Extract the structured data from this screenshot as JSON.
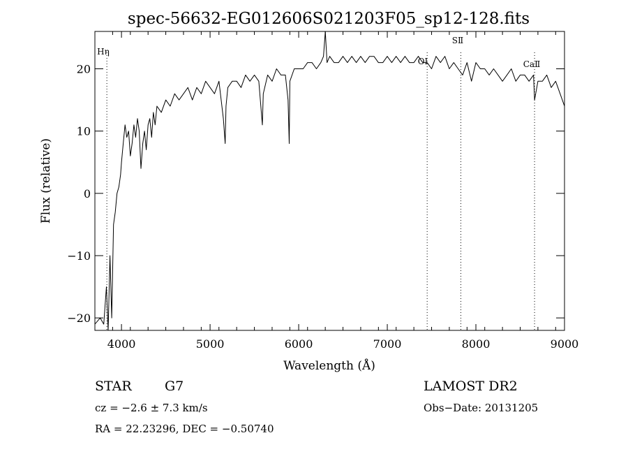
{
  "chart_data": {
    "type": "line",
    "title": "spec-56632-EG012606S021203F05_sp12-128.fits",
    "xlabel": "Wavelength (Å)",
    "ylabel": "Flux (relative)",
    "xlim": [
      3700,
      9000
    ],
    "ylim": [
      -22,
      26
    ],
    "xticks": [
      {
        "value": 4000,
        "label": "4000"
      },
      {
        "value": 5000,
        "label": "5000"
      },
      {
        "value": 6000,
        "label": "6000"
      },
      {
        "value": 7000,
        "label": "7000"
      },
      {
        "value": 8000,
        "label": "8000"
      },
      {
        "value": 9000,
        "label": "9000"
      }
    ],
    "yticks": [
      {
        "value": -20,
        "label": "−20"
      },
      {
        "value": -10,
        "label": "−10"
      },
      {
        "value": 0,
        "label": "0"
      },
      {
        "value": 10,
        "label": "10"
      },
      {
        "value": 20,
        "label": "20"
      }
    ],
    "grid": false,
    "series": [
      {
        "x": [
          3700,
          3760,
          3800,
          3830,
          3850,
          3870,
          3890,
          3910,
          3930,
          3950,
          3970,
          3990,
          4000,
          4020,
          4040,
          4060,
          4080,
          4100,
          4120,
          4140,
          4160,
          4180,
          4200,
          4220,
          4240,
          4260,
          4280,
          4300,
          4320,
          4340,
          4360,
          4380,
          4400,
          4450,
          4500,
          4550,
          4600,
          4650,
          4700,
          4750,
          4800,
          4850,
          4900,
          4950,
          5000,
          5050,
          5100,
          5150,
          5170,
          5180,
          5200,
          5250,
          5300,
          5350,
          5400,
          5450,
          5500,
          5550,
          5590,
          5600,
          5650,
          5700,
          5750,
          5800,
          5850,
          5880,
          5893,
          5900,
          5950,
          6000,
          6050,
          6100,
          6150,
          6200,
          6250,
          6280,
          6300,
          6320,
          6350,
          6400,
          6450,
          6500,
          6550,
          6600,
          6650,
          6700,
          6750,
          6800,
          6850,
          6900,
          6950,
          7000,
          7050,
          7100,
          7150,
          7200,
          7250,
          7300,
          7350,
          7400,
          7450,
          7500,
          7550,
          7600,
          7650,
          7700,
          7750,
          7800,
          7850,
          7900,
          7950,
          8000,
          8050,
          8100,
          8150,
          8200,
          8250,
          8300,
          8350,
          8400,
          8450,
          8500,
          8550,
          8600,
          8650,
          8662,
          8700,
          8750,
          8800,
          8850,
          8900,
          8950,
          9000
        ],
        "y": [
          -21,
          -20,
          -21,
          -15,
          -22,
          -10,
          -20,
          -5,
          -3,
          0,
          1,
          3,
          5,
          8,
          11,
          9,
          10,
          6,
          8,
          11,
          9,
          12,
          10,
          4,
          8,
          10,
          7,
          11,
          12,
          9,
          13,
          11,
          14,
          13,
          15,
          14,
          16,
          15,
          16,
          17,
          15,
          17,
          16,
          18,
          17,
          16,
          18,
          12,
          8,
          14,
          17,
          18,
          18,
          17,
          19,
          18,
          19,
          18,
          11,
          16,
          19,
          18,
          20,
          19,
          19,
          15,
          8,
          18,
          20,
          20,
          20,
          21,
          21,
          20,
          21,
          22,
          26,
          21,
          22,
          21,
          21,
          22,
          21,
          22,
          21,
          22,
          21,
          22,
          22,
          21,
          21,
          22,
          21,
          22,
          21,
          22,
          21,
          21,
          22,
          21,
          21,
          20,
          22,
          21,
          22,
          20,
          21,
          20,
          19,
          21,
          18,
          21,
          20,
          20,
          19,
          20,
          19,
          18,
          19,
          20,
          18,
          19,
          19,
          18,
          19,
          15,
          18,
          18,
          19,
          17,
          18,
          16,
          14
        ]
      }
    ],
    "line_markers": [
      {
        "x": 3835,
        "label": "Hη"
      },
      {
        "x": 7450,
        "label": "OⅠ"
      },
      {
        "x": 7830,
        "label": "SⅡ"
      },
      {
        "x": 8662,
        "label": "CaⅡ"
      }
    ],
    "annotations": {
      "object": "STAR",
      "subclass": "G7",
      "survey": "LAMOST DR2",
      "cz": "cz = −2.6 ± 7.3 km/s",
      "obs_date": "Obs−Date: 20131205",
      "coords": "RA =  22.23296, DEC =  −0.50740"
    }
  }
}
